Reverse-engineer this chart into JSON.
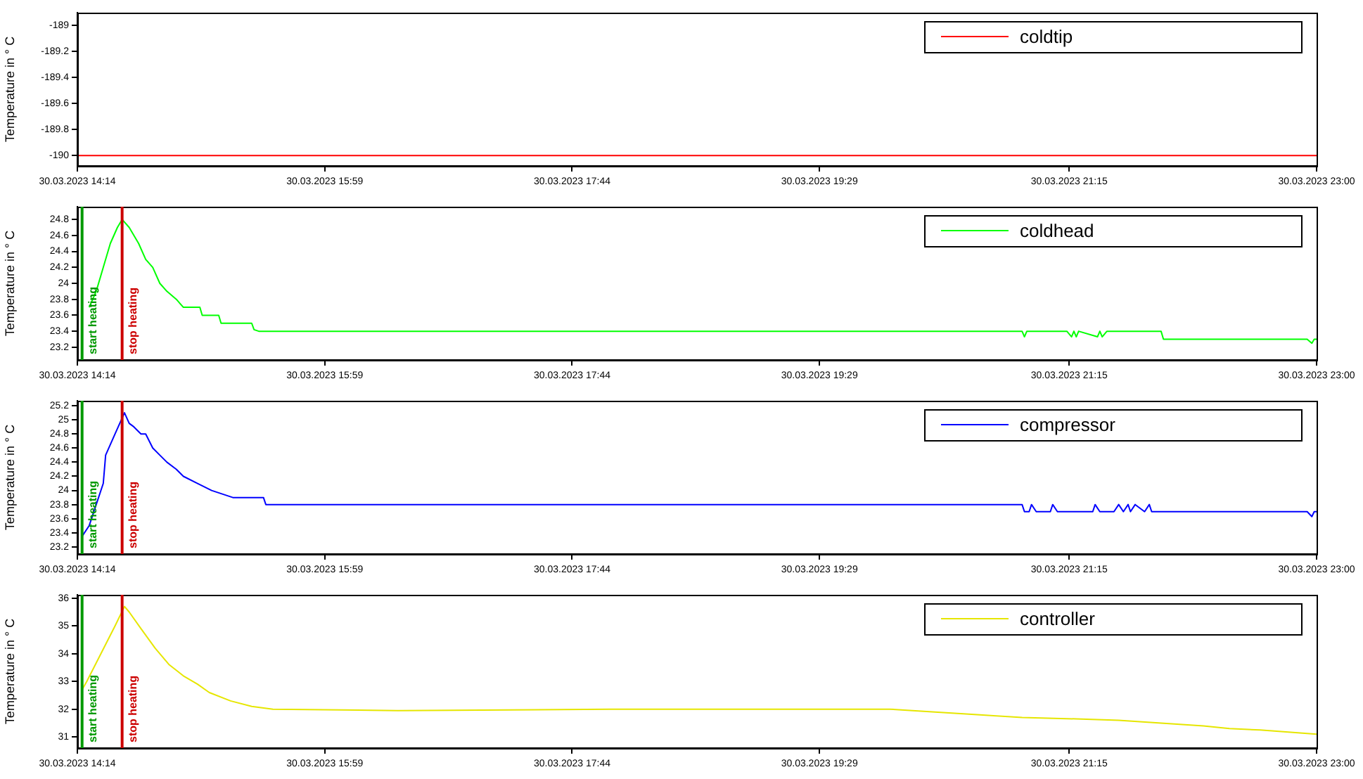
{
  "chart_data": [
    {
      "type": "line",
      "ylabel": "Temperature in ° C",
      "legend": "top right",
      "series": [
        {
          "name": "coldtip",
          "color": "#ff0000",
          "x": [
            "2023-03-30T14:14",
            "2023-03-30T23:00"
          ],
          "values": [
            -190,
            -190
          ]
        }
      ],
      "xlim": [
        "2023-03-30T14:14",
        "2023-03-30T23:00"
      ],
      "xticks": [
        {
          "value": "2023-03-30T14:14",
          "label": "30.03.2023 14:14"
        },
        {
          "value": "2023-03-30T15:59",
          "label": "30.03.2023 15:59"
        },
        {
          "value": "2023-03-30T17:44",
          "label": "30.03.2023 17:44"
        },
        {
          "value": "2023-03-30T19:29",
          "label": "30.03.2023 19:29"
        },
        {
          "value": "2023-03-30T21:15",
          "label": "30.03.2023 21:15"
        },
        {
          "value": "2023-03-30T23:00",
          "label": "30.03.2023 23:00"
        }
      ],
      "ylim": [
        -190.08,
        -188.9
      ],
      "yticks": [
        -190,
        -189.8,
        -189.6,
        -189.4,
        -189.2,
        -189
      ]
    },
    {
      "type": "line",
      "ylabel": "Temperature in ° C",
      "legend": "top right",
      "series": [
        {
          "name": "coldhead",
          "color": "#00ff00",
          "x": [
            "2023-03-30T14:19",
            "2023-03-30T14:22",
            "2023-03-30T14:25",
            "2023-03-30T14:28",
            "2023-03-30T14:31",
            "2023-03-30T14:33",
            "2023-03-30T14:36",
            "2023-03-30T14:40",
            "2023-03-30T14:43",
            "2023-03-30T14:46",
            "2023-03-30T14:49",
            "2023-03-30T14:52",
            "2023-03-30T14:56",
            "2023-03-30T14:59",
            "2023-03-30T15:06",
            "2023-03-30T15:07",
            "2023-03-30T15:14",
            "2023-03-30T15:15",
            "2023-03-30T15:28",
            "2023-03-30T15:29",
            "2023-03-30T15:31",
            "2023-03-30T20:55",
            "2023-03-30T20:56",
            "2023-03-30T20:57",
            "2023-03-30T21:14",
            "2023-03-30T21:16",
            "2023-03-30T21:17",
            "2023-03-30T21:18",
            "2023-03-30T21:19",
            "2023-03-30T21:27",
            "2023-03-30T21:28",
            "2023-03-30T21:29",
            "2023-03-30T21:31",
            "2023-03-30T21:54",
            "2023-03-30T21:55",
            "2023-03-30T22:56",
            "2023-03-30T22:58",
            "2023-03-30T22:59",
            "2023-03-30T23:00"
          ],
          "values": [
            23.7,
            23.9,
            24.2,
            24.5,
            24.7,
            24.8,
            24.7,
            24.5,
            24.3,
            24.2,
            24.0,
            23.9,
            23.8,
            23.7,
            23.7,
            23.6,
            23.6,
            23.5,
            23.5,
            23.42,
            23.4,
            23.4,
            23.33,
            23.4,
            23.4,
            23.33,
            23.4,
            23.33,
            23.4,
            23.33,
            23.4,
            23.33,
            23.4,
            23.4,
            23.3,
            23.3,
            23.25,
            23.3,
            23.3
          ]
        }
      ],
      "ref_lines": [
        {
          "axis": "x",
          "value": "2023-03-30T14:16",
          "label": "start heating",
          "color": "#009900"
        },
        {
          "axis": "x",
          "value": "2023-03-30T14:33",
          "label": "stop heating",
          "color": "#cc0000"
        }
      ],
      "xlim": [
        "2023-03-30T14:14",
        "2023-03-30T23:00"
      ],
      "xticks": [
        {
          "value": "2023-03-30T14:14",
          "label": "30.03.2023 14:14"
        },
        {
          "value": "2023-03-30T15:59",
          "label": "30.03.2023 15:59"
        },
        {
          "value": "2023-03-30T17:44",
          "label": "30.03.2023 17:44"
        },
        {
          "value": "2023-03-30T19:29",
          "label": "30.03.2023 19:29"
        },
        {
          "value": "2023-03-30T21:15",
          "label": "30.03.2023 21:15"
        },
        {
          "value": "2023-03-30T23:00",
          "label": "30.03.2023 23:00"
        }
      ],
      "ylim": [
        23.04,
        24.96
      ],
      "yticks": [
        23.2,
        23.4,
        23.6,
        23.8,
        24,
        24.2,
        24.4,
        24.6,
        24.8
      ]
    },
    {
      "type": "line",
      "ylabel": "Temperature in ° C",
      "legend": "top right",
      "series": [
        {
          "name": "compressor",
          "color": "#0000ff",
          "x": [
            "2023-03-30T14:16",
            "2023-03-30T14:19",
            "2023-03-30T14:22",
            "2023-03-30T14:25",
            "2023-03-30T14:26",
            "2023-03-30T14:30",
            "2023-03-30T14:34",
            "2023-03-30T14:36",
            "2023-03-30T14:38",
            "2023-03-30T14:41",
            "2023-03-30T14:43",
            "2023-03-30T14:46",
            "2023-03-30T14:49",
            "2023-03-30T14:52",
            "2023-03-30T14:56",
            "2023-03-30T14:59",
            "2023-03-30T15:05",
            "2023-03-30T15:11",
            "2023-03-30T15:20",
            "2023-03-30T15:33",
            "2023-03-30T15:34",
            "2023-03-30T20:55",
            "2023-03-30T20:56",
            "2023-03-30T20:58",
            "2023-03-30T20:59",
            "2023-03-30T21:01",
            "2023-03-30T21:07",
            "2023-03-30T21:08",
            "2023-03-30T21:10",
            "2023-03-30T21:25",
            "2023-03-30T21:26",
            "2023-03-30T21:28",
            "2023-03-30T21:34",
            "2023-03-30T21:36",
            "2023-03-30T21:38",
            "2023-03-30T21:40",
            "2023-03-30T21:41",
            "2023-03-30T21:43",
            "2023-03-30T21:47",
            "2023-03-30T21:49",
            "2023-03-30T21:50",
            "2023-03-30T21:52",
            "2023-03-30T22:56",
            "2023-03-30T22:58",
            "2023-03-30T22:59",
            "2023-03-30T23:00"
          ],
          "values": [
            23.35,
            23.5,
            23.8,
            24.1,
            24.5,
            24.8,
            25.1,
            24.95,
            24.9,
            24.8,
            24.8,
            24.6,
            24.5,
            24.4,
            24.3,
            24.2,
            24.1,
            24.0,
            23.9,
            23.9,
            23.8,
            23.8,
            23.7,
            23.7,
            23.8,
            23.7,
            23.7,
            23.8,
            23.7,
            23.7,
            23.8,
            23.7,
            23.7,
            23.8,
            23.7,
            23.8,
            23.7,
            23.8,
            23.7,
            23.8,
            23.7,
            23.7,
            23.7,
            23.63,
            23.7,
            23.7
          ]
        }
      ],
      "ref_lines": [
        {
          "axis": "x",
          "value": "2023-03-30T14:16",
          "label": "start heating",
          "color": "#009900"
        },
        {
          "axis": "x",
          "value": "2023-03-30T14:33",
          "label": "stop heating",
          "color": "#cc0000"
        }
      ],
      "xlim": [
        "2023-03-30T14:14",
        "2023-03-30T23:00"
      ],
      "xticks": [
        {
          "value": "2023-03-30T14:14",
          "label": "30.03.2023 14:14"
        },
        {
          "value": "2023-03-30T15:59",
          "label": "30.03.2023 15:59"
        },
        {
          "value": "2023-03-30T17:44",
          "label": "30.03.2023 17:44"
        },
        {
          "value": "2023-03-30T19:29",
          "label": "30.03.2023 19:29"
        },
        {
          "value": "2023-03-30T21:15",
          "label": "30.03.2023 21:15"
        },
        {
          "value": "2023-03-30T23:00",
          "label": "30.03.2023 23:00"
        }
      ],
      "ylim": [
        23.1,
        25.27
      ],
      "yticks": [
        23.2,
        23.4,
        23.6,
        23.8,
        24,
        24.2,
        24.4,
        24.6,
        24.8,
        25,
        25.2
      ]
    },
    {
      "type": "line",
      "ylabel": "Temperature in ° C",
      "legend": "top right",
      "series": [
        {
          "name": "controller",
          "color": "#e6e600",
          "x": [
            "2023-03-30T14:16",
            "2023-03-30T14:18",
            "2023-03-30T14:24",
            "2023-03-30T14:30",
            "2023-03-30T14:34",
            "2023-03-30T14:36",
            "2023-03-30T14:41",
            "2023-03-30T14:47",
            "2023-03-30T14:53",
            "2023-03-30T14:59",
            "2023-03-30T15:05",
            "2023-03-30T15:10",
            "2023-03-30T15:19",
            "2023-03-30T15:28",
            "2023-03-30T15:37",
            "2023-03-30T16:30",
            "2023-03-30T18:00",
            "2023-03-30T19:30",
            "2023-03-30T19:59",
            "2023-03-30T20:18",
            "2023-03-30T20:36",
            "2023-03-30T20:55",
            "2023-03-30T21:18",
            "2023-03-30T21:36",
            "2023-03-30T21:54",
            "2023-03-30T22:12",
            "2023-03-30T22:23",
            "2023-03-30T22:36",
            "2023-03-30T22:52",
            "2023-03-30T23:00"
          ],
          "values": [
            32.7,
            33.0,
            34.0,
            35.0,
            35.7,
            35.5,
            34.9,
            34.2,
            33.6,
            33.2,
            32.9,
            32.6,
            32.3,
            32.1,
            32.0,
            31.95,
            32.0,
            32.0,
            32.0,
            31.9,
            31.8,
            31.7,
            31.65,
            31.6,
            31.5,
            31.4,
            31.3,
            31.25,
            31.15,
            31.1
          ]
        }
      ],
      "ref_lines": [
        {
          "axis": "x",
          "value": "2023-03-30T14:16",
          "label": "start heating",
          "color": "#009900"
        },
        {
          "axis": "x",
          "value": "2023-03-30T14:33",
          "label": "stop heating",
          "color": "#cc0000"
        }
      ],
      "xlim": [
        "2023-03-30T14:14",
        "2023-03-30T23:00"
      ],
      "xticks": [
        {
          "value": "2023-03-30T14:14",
          "label": "30.03.2023 14:14"
        },
        {
          "value": "2023-03-30T15:59",
          "label": "30.03.2023 15:59"
        },
        {
          "value": "2023-03-30T17:44",
          "label": "30.03.2023 17:44"
        },
        {
          "value": "2023-03-30T19:29",
          "label": "30.03.2023 19:29"
        },
        {
          "value": "2023-03-30T21:15",
          "label": "30.03.2023 21:15"
        },
        {
          "value": "2023-03-30T23:00",
          "label": "30.03.2023 23:00"
        }
      ],
      "ylim": [
        30.6,
        36.12
      ],
      "yticks": [
        31,
        32,
        33,
        34,
        35,
        36
      ]
    }
  ]
}
